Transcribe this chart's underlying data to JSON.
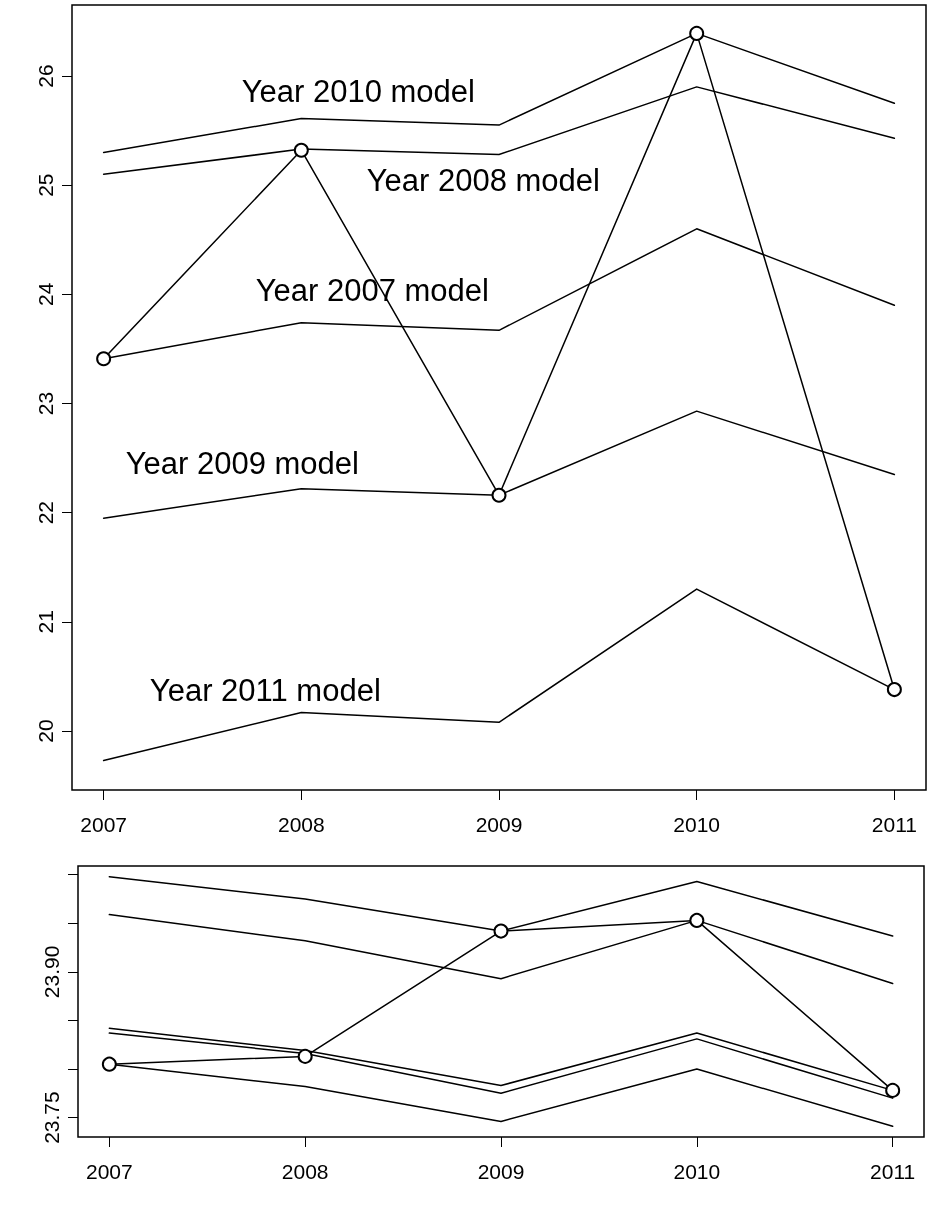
{
  "chart_data": [
    {
      "type": "line",
      "xlim": [
        2006.84,
        2011.16
      ],
      "xticks": [
        2007,
        2008,
        2009,
        2010,
        2011
      ],
      "ylim": [
        19.46,
        26.65
      ],
      "yticks": [
        20,
        21,
        22,
        23,
        24,
        25,
        26
      ],
      "x": [
        2007,
        2008,
        2009,
        2010,
        2011
      ],
      "grid": false,
      "legend": false,
      "series": [
        {
          "color": "#000000",
          "marker": "circle",
          "values": [
            23.41,
            25.32,
            22.16,
            26.39,
            20.38
          ]
        },
        {
          "name": "Year 2010 model",
          "color": "#000000",
          "marker": "none",
          "values": [
            25.3,
            25.61,
            25.55,
            26.39,
            25.75
          ]
        },
        {
          "name": "Year 2008 model",
          "color": "#000000",
          "marker": "none",
          "values": [
            25.1,
            25.33,
            25.28,
            25.9,
            25.43
          ]
        },
        {
          "name": "Year 2007 model",
          "color": "#000000",
          "marker": "none",
          "values": [
            23.41,
            23.74,
            23.67,
            24.6,
            23.9
          ]
        },
        {
          "name": "Year 2009 model",
          "color": "#000000",
          "marker": "none",
          "values": [
            21.95,
            22.22,
            22.16,
            22.93,
            22.35
          ]
        },
        {
          "name": "Year 2011 model",
          "color": "#000000",
          "marker": "none",
          "values": [
            19.73,
            20.17,
            20.08,
            21.3,
            20.38
          ]
        }
      ]
    },
    {
      "type": "line",
      "xlim": [
        2006.84,
        2011.16
      ],
      "xticks": [
        2007,
        2008,
        2009,
        2010,
        2011
      ],
      "ylim": [
        23.73,
        24.009
      ],
      "yticks": [
        23.75,
        {
          "value": 23.8,
          "label": null
        },
        {
          "value": 23.85,
          "label": null
        },
        {
          "value": 23.9,
          "label": "23.90"
        },
        {
          "value": 23.95,
          "label": null
        },
        {
          "value": 24.0,
          "label": null
        }
      ],
      "x": [
        2007,
        2008,
        2009,
        2010,
        2011
      ],
      "grid": false,
      "legend": false,
      "series": [
        {
          "color": "#000000",
          "marker": "circle",
          "values": [
            23.805,
            23.813,
            23.942,
            23.953,
            23.778
          ]
        },
        {
          "color": "#000000",
          "marker": "none",
          "values": [
            23.998,
            23.975,
            23.942,
            23.993,
            23.937
          ]
        },
        {
          "color": "#000000",
          "marker": "none",
          "values": [
            23.959,
            23.932,
            23.893,
            23.953,
            23.888
          ]
        },
        {
          "color": "#000000",
          "marker": "none",
          "values": [
            23.842,
            23.819,
            23.783,
            23.837,
            23.778
          ]
        },
        {
          "color": "#000000",
          "marker": "none",
          "values": [
            23.837,
            23.816,
            23.775,
            23.831,
            23.77
          ]
        },
        {
          "color": "#000000",
          "marker": "none",
          "values": [
            23.805,
            23.782,
            23.746,
            23.8,
            23.741
          ]
        }
      ]
    }
  ]
}
